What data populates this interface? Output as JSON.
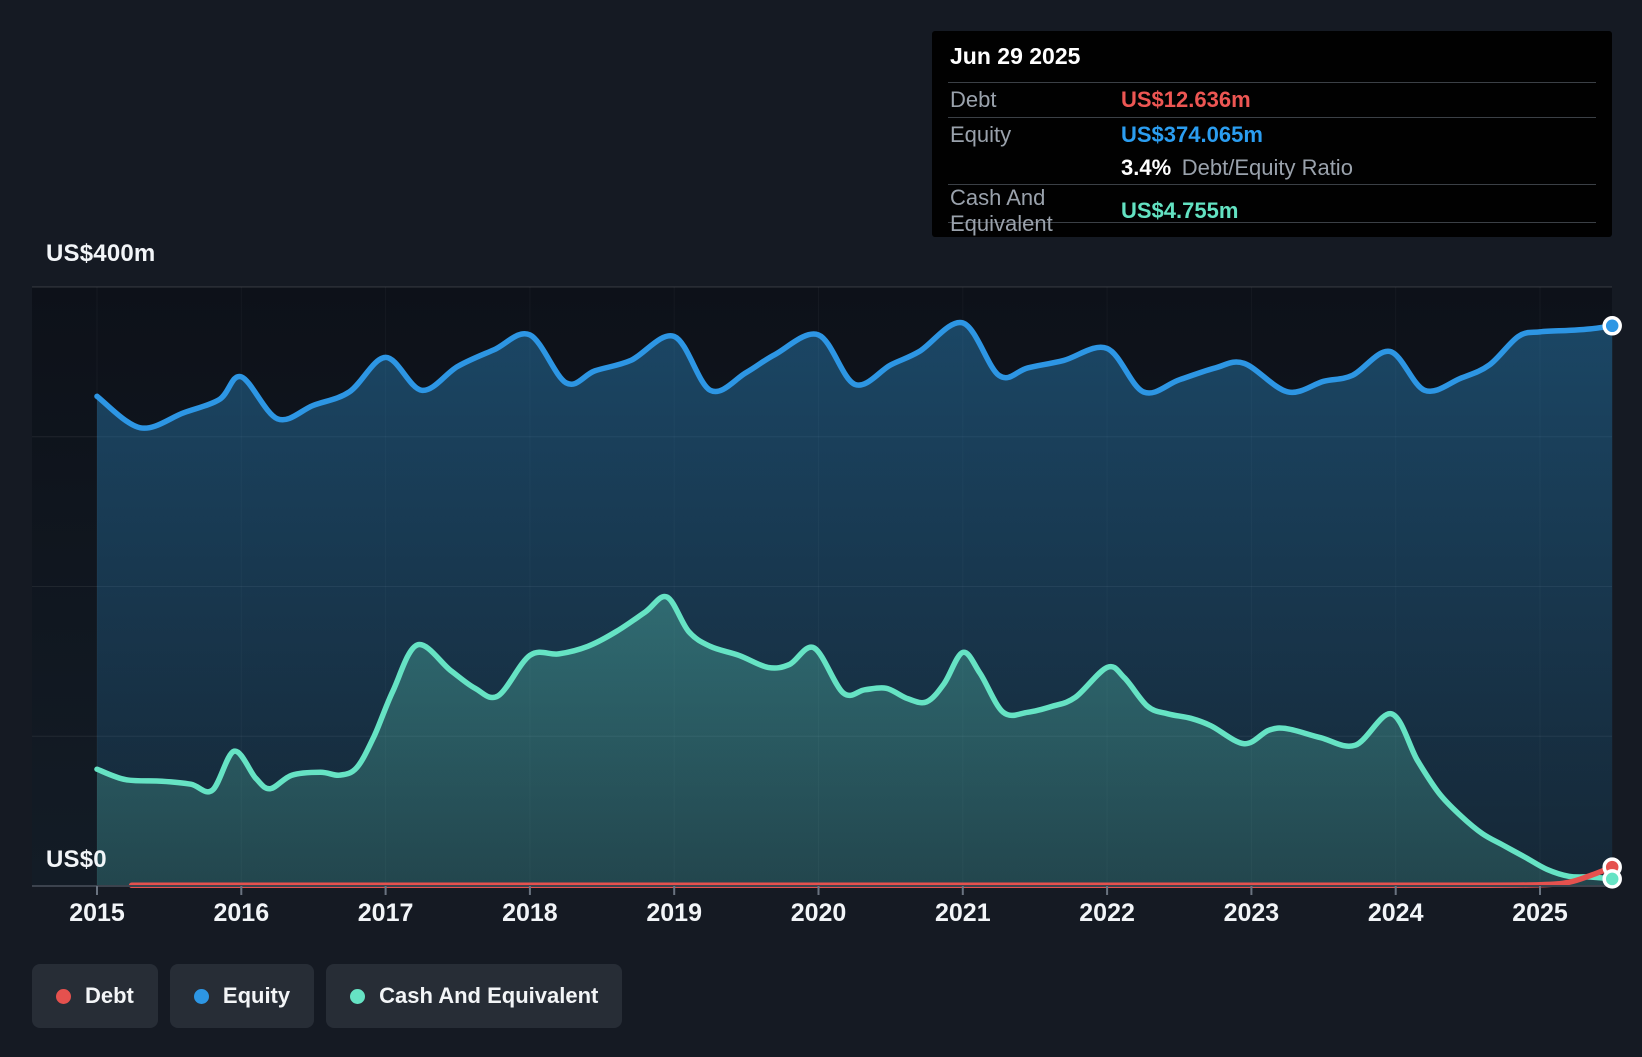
{
  "tooltip": {
    "date": "Jun 29 2025",
    "debt_label": "Debt",
    "debt_value": "US$12.636m",
    "equity_label": "Equity",
    "equity_value": "US$374.065m",
    "ratio_value": "3.4%",
    "ratio_suffix": "Debt/Equity Ratio",
    "cash_label": "Cash And Equivalent",
    "cash_value": "US$4.755m"
  },
  "legend": {
    "items": [
      {
        "label": "Debt",
        "color": "#e5514e"
      },
      {
        "label": "Equity",
        "color": "#2d96e4"
      },
      {
        "label": "Cash And Equivalent",
        "color": "#66e3c4"
      }
    ]
  },
  "chart_data": {
    "type": "area",
    "x_axis": {
      "ticks": [
        2015,
        2016,
        2017,
        2018,
        2019,
        2020,
        2021,
        2022,
        2023,
        2024,
        2025
      ],
      "min": 2015,
      "max": 2025.5
    },
    "y_axis": {
      "unit": "US$ millions",
      "min": 0,
      "max": 400,
      "gridlines_m": [
        400,
        300,
        200,
        100
      ],
      "top_label": "US$400m",
      "zero_label": "US$0"
    },
    "legend_position": "bottom-left",
    "grid": true,
    "highlight": {
      "date": "Jun 29 2025",
      "debt_m": 12.636,
      "equity_m": 374.065,
      "debt_equity_ratio": "3.4%",
      "cash_m": 4.755
    },
    "series": [
      {
        "name": "Equity",
        "color": "#2d96e4",
        "fill": true,
        "end_dot": true,
        "points": [
          [
            2015.0,
            327
          ],
          [
            2015.3,
            306
          ],
          [
            2015.6,
            316
          ],
          [
            2015.85,
            325
          ],
          [
            2016.0,
            340
          ],
          [
            2016.25,
            312
          ],
          [
            2016.5,
            321
          ],
          [
            2016.75,
            330
          ],
          [
            2017.0,
            353
          ],
          [
            2017.25,
            331
          ],
          [
            2017.5,
            347
          ],
          [
            2017.75,
            358
          ],
          [
            2018.0,
            368
          ],
          [
            2018.25,
            336
          ],
          [
            2018.45,
            344
          ],
          [
            2018.7,
            351
          ],
          [
            2019.0,
            367
          ],
          [
            2019.25,
            331
          ],
          [
            2019.5,
            343
          ],
          [
            2019.7,
            355
          ],
          [
            2020.0,
            368
          ],
          [
            2020.25,
            335
          ],
          [
            2020.5,
            348
          ],
          [
            2020.7,
            357
          ],
          [
            2021.0,
            376
          ],
          [
            2021.25,
            341
          ],
          [
            2021.45,
            346
          ],
          [
            2021.7,
            351
          ],
          [
            2022.0,
            359
          ],
          [
            2022.25,
            330
          ],
          [
            2022.5,
            338
          ],
          [
            2022.75,
            346
          ],
          [
            2022.95,
            349
          ],
          [
            2023.25,
            330
          ],
          [
            2023.5,
            337
          ],
          [
            2023.7,
            341
          ],
          [
            2023.96,
            357
          ],
          [
            2024.2,
            331
          ],
          [
            2024.45,
            339
          ],
          [
            2024.65,
            348
          ],
          [
            2024.85,
            367
          ],
          [
            2025.0,
            370
          ],
          [
            2025.2,
            371
          ],
          [
            2025.35,
            372
          ],
          [
            2025.5,
            374.065
          ]
        ]
      },
      {
        "name": "Cash And Equivalent",
        "color": "#66e3c4",
        "fill": true,
        "end_dot": true,
        "points": [
          [
            2015.0,
            78
          ],
          [
            2015.2,
            71
          ],
          [
            2015.45,
            70
          ],
          [
            2015.65,
            68
          ],
          [
            2015.8,
            64
          ],
          [
            2015.95,
            90
          ],
          [
            2016.1,
            72
          ],
          [
            2016.2,
            65
          ],
          [
            2016.35,
            74
          ],
          [
            2016.55,
            76
          ],
          [
            2016.68,
            74
          ],
          [
            2016.8,
            79
          ],
          [
            2016.92,
            100
          ],
          [
            2017.05,
            130
          ],
          [
            2017.22,
            161
          ],
          [
            2017.45,
            144
          ],
          [
            2017.62,
            132
          ],
          [
            2017.78,
            127
          ],
          [
            2018.0,
            154
          ],
          [
            2018.2,
            155
          ],
          [
            2018.4,
            160
          ],
          [
            2018.6,
            170
          ],
          [
            2018.8,
            183
          ],
          [
            2018.95,
            193
          ],
          [
            2019.1,
            170
          ],
          [
            2019.25,
            160
          ],
          [
            2019.45,
            154
          ],
          [
            2019.65,
            146
          ],
          [
            2019.8,
            148
          ],
          [
            2019.97,
            159
          ],
          [
            2020.17,
            129
          ],
          [
            2020.32,
            131
          ],
          [
            2020.47,
            132
          ],
          [
            2020.62,
            125
          ],
          [
            2020.75,
            123
          ],
          [
            2020.87,
            135
          ],
          [
            2021.0,
            156
          ],
          [
            2021.12,
            142
          ],
          [
            2021.28,
            116
          ],
          [
            2021.45,
            116
          ],
          [
            2021.62,
            120
          ],
          [
            2021.78,
            126
          ],
          [
            2022.0,
            146
          ],
          [
            2022.12,
            139
          ],
          [
            2022.28,
            120
          ],
          [
            2022.42,
            115
          ],
          [
            2022.58,
            112
          ],
          [
            2022.72,
            107
          ],
          [
            2022.95,
            95
          ],
          [
            2023.12,
            104
          ],
          [
            2023.25,
            105
          ],
          [
            2023.48,
            99
          ],
          [
            2023.72,
            94
          ],
          [
            2023.97,
            115
          ],
          [
            2024.15,
            84
          ],
          [
            2024.3,
            62
          ],
          [
            2024.45,
            47
          ],
          [
            2024.6,
            35
          ],
          [
            2024.75,
            27
          ],
          [
            2024.9,
            19
          ],
          [
            2025.05,
            11
          ],
          [
            2025.2,
            6.5
          ],
          [
            2025.35,
            6
          ],
          [
            2025.5,
            4.755
          ]
        ]
      },
      {
        "name": "Debt",
        "color": "#e5514e",
        "fill": false,
        "end_dot": true,
        "points": [
          [
            2015.24,
            0.5
          ],
          [
            2015.5,
            0.5
          ],
          [
            2016.0,
            0.5
          ],
          [
            2016.5,
            0.5
          ],
          [
            2017.0,
            0.5
          ],
          [
            2017.5,
            0.5
          ],
          [
            2018.0,
            0.5
          ],
          [
            2018.5,
            0.5
          ],
          [
            2019.0,
            0.5
          ],
          [
            2019.5,
            0.5
          ],
          [
            2020.0,
            0.5
          ],
          [
            2020.5,
            0.5
          ],
          [
            2021.0,
            0.5
          ],
          [
            2021.5,
            0.5
          ],
          [
            2022.0,
            0.5
          ],
          [
            2022.5,
            0.5
          ],
          [
            2023.0,
            0.5
          ],
          [
            2023.5,
            0.5
          ],
          [
            2024.0,
            0.5
          ],
          [
            2024.5,
            0.5
          ],
          [
            2025.0,
            0.8
          ],
          [
            2025.2,
            2.5
          ],
          [
            2025.35,
            7
          ],
          [
            2025.5,
            12.636
          ]
        ]
      }
    ]
  }
}
